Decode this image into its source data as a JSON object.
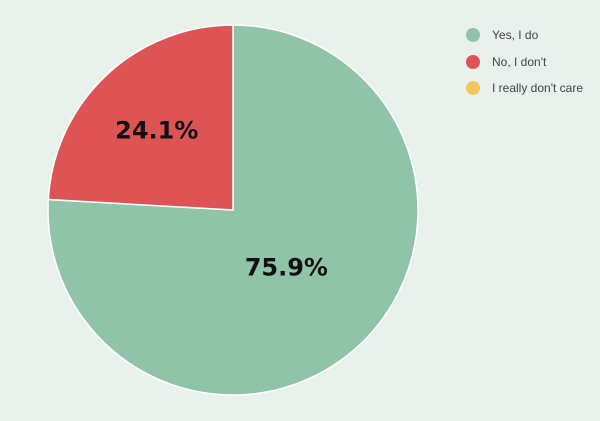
{
  "chart_data": {
    "type": "pie",
    "categories": [
      "Yes, I do",
      "No, I don't",
      "I really don't care"
    ],
    "values": [
      75.9,
      24.1,
      0
    ],
    "data_labels": [
      "75.9%",
      "24.1%",
      ""
    ],
    "colors": [
      "#8fc4a9",
      "#de5455",
      "#f0c862"
    ],
    "legend": "top-right"
  }
}
